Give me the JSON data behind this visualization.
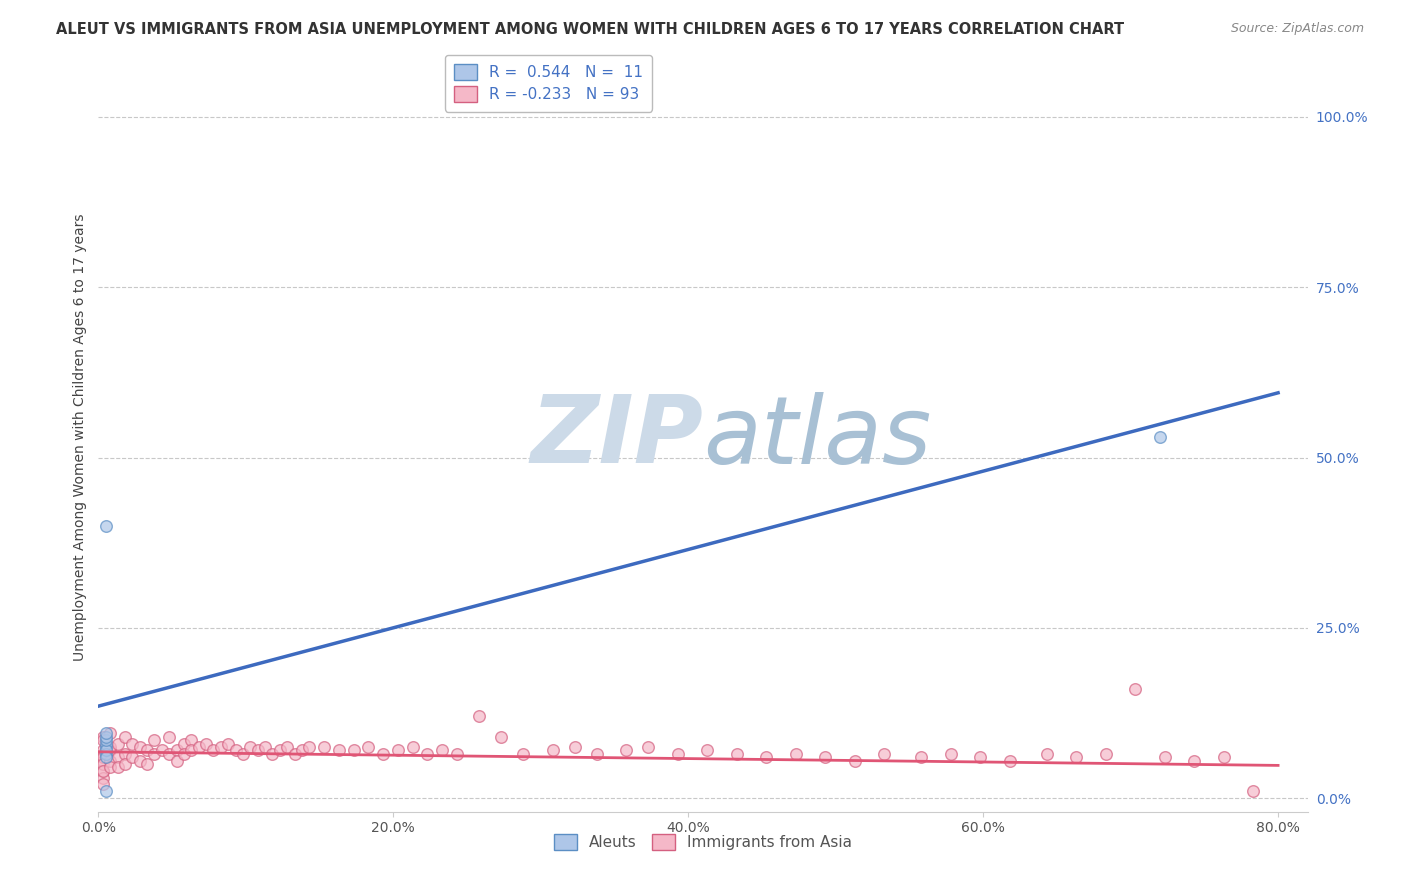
{
  "title": "ALEUT VS IMMIGRANTS FROM ASIA UNEMPLOYMENT AMONG WOMEN WITH CHILDREN AGES 6 TO 17 YEARS CORRELATION CHART",
  "source": "Source: ZipAtlas.com",
  "ylabel": "Unemployment Among Women with Children Ages 6 to 17 years",
  "xlim": [
    0.0,
    0.82
  ],
  "ylim": [
    -0.02,
    1.08
  ],
  "xtick_labels": [
    "0.0%",
    "20.0%",
    "40.0%",
    "60.0%",
    "80.0%"
  ],
  "xtick_vals": [
    0.0,
    0.2,
    0.4,
    0.6,
    0.8
  ],
  "ytick_right_labels": [
    "100.0%",
    "75.0%",
    "50.0%",
    "25.0%",
    "0.0%"
  ],
  "ytick_right_vals": [
    1.0,
    0.75,
    0.5,
    0.25,
    0.0
  ],
  "grid_color": "#c8c8c8",
  "background_color": "#ffffff",
  "watermark_zip": "ZIP",
  "watermark_atlas": "atlas",
  "watermark_color_zip": "#c5d5e5",
  "watermark_color_atlas": "#a0b8cc",
  "aleut_color": "#aec6e8",
  "aleut_edge_color": "#5b8ec4",
  "asia_color": "#f5b8c8",
  "asia_edge_color": "#d46080",
  "aleut_line_color": "#3d6abf",
  "asia_line_color": "#e05575",
  "legend_label1": "R =  0.544   N =  11",
  "legend_label2": "R = -0.233   N = 93",
  "aleut_points_x": [
    0.005,
    0.005,
    0.005,
    0.005,
    0.005,
    0.005,
    0.005,
    0.005,
    0.005,
    0.72,
    0.005
  ],
  "aleut_points_y": [
    0.075,
    0.08,
    0.065,
    0.07,
    0.06,
    0.085,
    0.09,
    0.095,
    0.4,
    0.53,
    0.01
  ],
  "asia_points_x": [
    0.003,
    0.003,
    0.003,
    0.003,
    0.003,
    0.003,
    0.003,
    0.003,
    0.003,
    0.003,
    0.003,
    0.008,
    0.008,
    0.008,
    0.008,
    0.008,
    0.013,
    0.013,
    0.013,
    0.018,
    0.018,
    0.018,
    0.023,
    0.023,
    0.028,
    0.028,
    0.033,
    0.033,
    0.038,
    0.038,
    0.043,
    0.048,
    0.048,
    0.053,
    0.053,
    0.058,
    0.058,
    0.063,
    0.063,
    0.068,
    0.073,
    0.078,
    0.083,
    0.088,
    0.093,
    0.098,
    0.103,
    0.108,
    0.113,
    0.118,
    0.123,
    0.128,
    0.133,
    0.138,
    0.143,
    0.153,
    0.163,
    0.173,
    0.183,
    0.193,
    0.203,
    0.213,
    0.223,
    0.233,
    0.243,
    0.258,
    0.273,
    0.288,
    0.308,
    0.323,
    0.338,
    0.358,
    0.373,
    0.393,
    0.413,
    0.433,
    0.453,
    0.473,
    0.493,
    0.513,
    0.533,
    0.558,
    0.578,
    0.598,
    0.618,
    0.643,
    0.663,
    0.683,
    0.703,
    0.723,
    0.743,
    0.763,
    0.783
  ],
  "asia_points_y": [
    0.09,
    0.065,
    0.055,
    0.04,
    0.03,
    0.02,
    0.085,
    0.07,
    0.06,
    0.05,
    0.04,
    0.07,
    0.055,
    0.045,
    0.095,
    0.075,
    0.08,
    0.06,
    0.045,
    0.09,
    0.065,
    0.05,
    0.08,
    0.06,
    0.075,
    0.055,
    0.07,
    0.05,
    0.085,
    0.065,
    0.07,
    0.09,
    0.065,
    0.07,
    0.055,
    0.08,
    0.065,
    0.085,
    0.07,
    0.075,
    0.08,
    0.07,
    0.075,
    0.08,
    0.07,
    0.065,
    0.075,
    0.07,
    0.075,
    0.065,
    0.07,
    0.075,
    0.065,
    0.07,
    0.075,
    0.075,
    0.07,
    0.07,
    0.075,
    0.065,
    0.07,
    0.075,
    0.065,
    0.07,
    0.065,
    0.12,
    0.09,
    0.065,
    0.07,
    0.075,
    0.065,
    0.07,
    0.075,
    0.065,
    0.07,
    0.065,
    0.06,
    0.065,
    0.06,
    0.055,
    0.065,
    0.06,
    0.065,
    0.06,
    0.055,
    0.065,
    0.06,
    0.065,
    0.16,
    0.06,
    0.055,
    0.06,
    0.01
  ],
  "aleut_line_x": [
    0.0,
    0.8
  ],
  "aleut_line_y": [
    0.135,
    0.595
  ],
  "asia_line_x": [
    0.0,
    0.8
  ],
  "asia_line_y": [
    0.068,
    0.048
  ],
  "title_fontsize": 10.5,
  "source_fontsize": 9,
  "ylabel_fontsize": 10,
  "tick_fontsize": 10,
  "legend_fontsize": 11,
  "point_size": 70,
  "point_alpha": 0.7,
  "point_linewidth": 1.0
}
